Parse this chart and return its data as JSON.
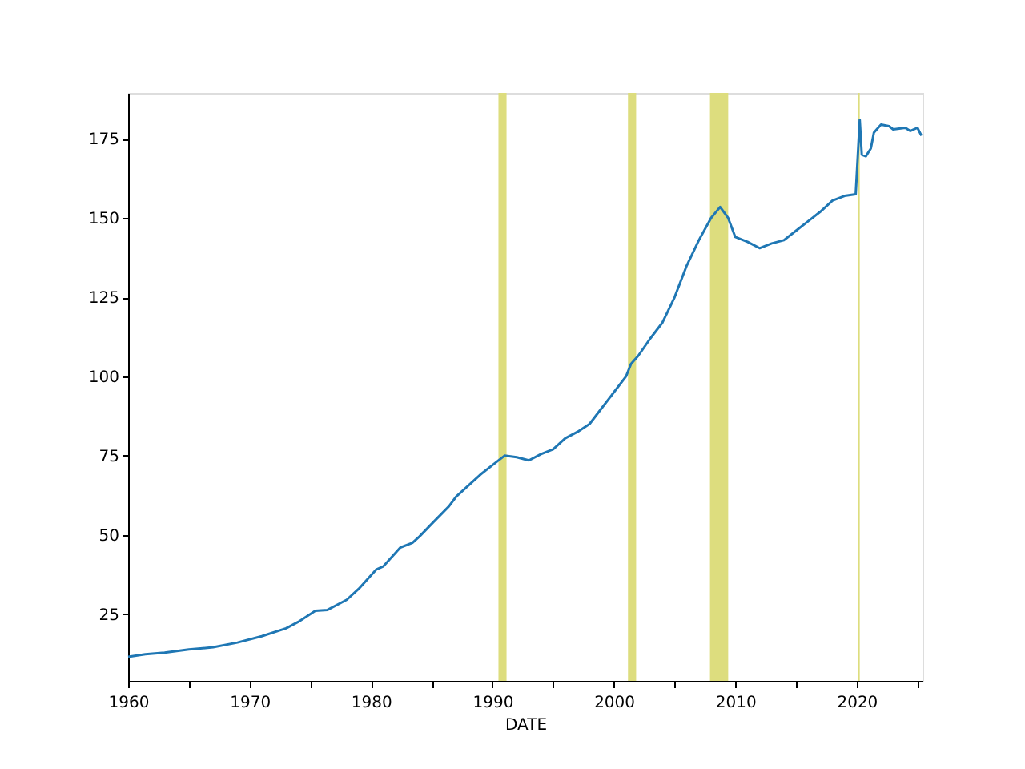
{
  "chart_data": {
    "type": "line",
    "xlabel": "DATE",
    "x": [
      "1960-01",
      "1961-06",
      "1963-01",
      "1965-01",
      "1967-01",
      "1969-01",
      "1971-01",
      "1973-01",
      "1974-01",
      "1975-06",
      "1976-06",
      "1978-01",
      "1979-01",
      "1980-06",
      "1981-01",
      "1982-06",
      "1983-06",
      "1984-01",
      "1985-01",
      "1986-06",
      "1987-01",
      "1988-01",
      "1989-01",
      "1990-01",
      "1991-01",
      "1992-01",
      "1993-01",
      "1994-01",
      "1995-01",
      "1996-01",
      "1997-01",
      "1998-01",
      "1999-01",
      "2000-01",
      "2001-01",
      "2001-06",
      "2002-01",
      "2003-01",
      "2004-01",
      "2005-01",
      "2006-01",
      "2007-01",
      "2008-01",
      "2008-10",
      "2009-06",
      "2010-01",
      "2011-01",
      "2012-01",
      "2013-01",
      "2014-01",
      "2015-01",
      "2016-01",
      "2017-01",
      "2018-01",
      "2019-01",
      "2019-12",
      "2020-04",
      "2020-06",
      "2020-10",
      "2021-03",
      "2021-06",
      "2022-01",
      "2022-09",
      "2023-01",
      "2024-01",
      "2024-06",
      "2025-01",
      "2025-05"
    ],
    "series": [
      {
        "color": "#1f77b4",
        "values": [
          11.5,
          12.3,
          12.8,
          13.8,
          14.5,
          16,
          18,
          20.5,
          22.5,
          26,
          26.3,
          29.5,
          33,
          39,
          40,
          46,
          47.5,
          49.5,
          53.5,
          59,
          62,
          65.5,
          69,
          72,
          75,
          74.5,
          73.5,
          75.5,
          77,
          80.5,
          82.5,
          85,
          90,
          95,
          100,
          104,
          106.5,
          112,
          117,
          125,
          135,
          143,
          150,
          153.5,
          150,
          144,
          142.5,
          140.5,
          142,
          143,
          146,
          149,
          152,
          155.5,
          157,
          157.5,
          181,
          170,
          169.5,
          172,
          177,
          179.5,
          179,
          178,
          178.5,
          177.5,
          178.5,
          176
        ]
      }
    ],
    "xlim": [
      "1960-01",
      "2025-06"
    ],
    "xticks": [
      {
        "value": "1960",
        "label": "1960"
      },
      {
        "value": "1965",
        "label": null
      },
      {
        "value": "1970",
        "label": "1970"
      },
      {
        "value": "1975",
        "label": null
      },
      {
        "value": "1980",
        "label": "1980"
      },
      {
        "value": "1985",
        "label": null
      },
      {
        "value": "1990",
        "label": "1990"
      },
      {
        "value": "1995",
        "label": null
      },
      {
        "value": "2000",
        "label": "2000"
      },
      {
        "value": "2005",
        "label": null
      },
      {
        "value": "2010",
        "label": "2010"
      },
      {
        "value": "2015",
        "label": null
      },
      {
        "value": "2020",
        "label": "2020"
      },
      {
        "value": "2025",
        "label": null
      }
    ],
    "ylim": [
      3.9,
      189.5
    ],
    "yticks": [
      25,
      50,
      75,
      100,
      125,
      150,
      175
    ],
    "bands": [
      {
        "axis": "x",
        "from": "1990-07",
        "to": "1991-03",
        "color": "#dddd7e"
      },
      {
        "axis": "x",
        "from": "2001-03",
        "to": "2001-11",
        "color": "#dddd7e"
      },
      {
        "axis": "x",
        "from": "2007-12",
        "to": "2009-06",
        "color": "#dddd7e"
      },
      {
        "axis": "x",
        "from": "2020-02",
        "to": "2020-04",
        "color": "#dddd7e"
      }
    ],
    "grid": false
  }
}
